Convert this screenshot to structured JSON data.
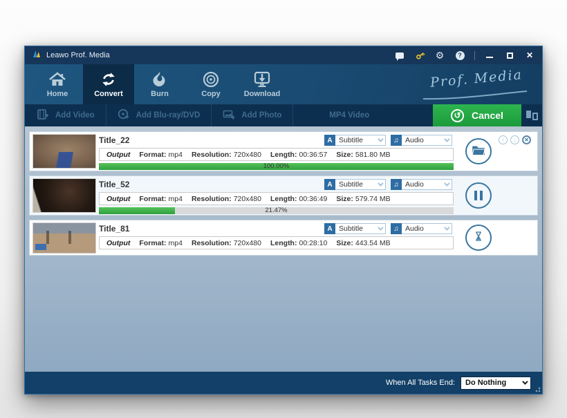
{
  "colors": {
    "titlebar_bg": "#16365a",
    "nav_bg_start": "#1e567f",
    "nav_bg_end": "#143e62",
    "nav_active_bg": "#0b2b47",
    "toolbar_bg": "#0d2f4f",
    "content_bg_start": "#b7c6d3",
    "content_bg_end": "#8fa9c2",
    "bottombar_bg": "#134068",
    "accent_green": "#22a844",
    "steel_blue": "#39759e",
    "progress_green": "#3fb14b",
    "key_gold": "#e6c230",
    "disabled_text": "#3f6b8e",
    "icon_blue": "#2e6da4"
  },
  "titlebar": {
    "app_title": "Leawo Prof. Media",
    "glyphs": {
      "gear": "⚙",
      "help": "?",
      "close": "✕"
    }
  },
  "nav": {
    "brand": "Prof. Media",
    "items": [
      {
        "id": "home",
        "label": "Home",
        "active": false
      },
      {
        "id": "convert",
        "label": "Convert",
        "active": true
      },
      {
        "id": "burn",
        "label": "Burn",
        "active": false
      },
      {
        "id": "copy",
        "label": "Copy",
        "active": false
      },
      {
        "id": "download",
        "label": "Download",
        "active": false
      }
    ]
  },
  "toolbar": {
    "add_video_label": "Add Video",
    "add_bluray_label": "Add Blu-ray/DVD",
    "add_photo_label": "Add Photo",
    "format_label": "MP4 Video",
    "cancel_label": "Cancel",
    "cancel_icon_glyph": "↺"
  },
  "ui_glyphs": {
    "move_up": "↑",
    "move_down": "↓",
    "remove": "✕",
    "subtitle_icon": "A",
    "audio_icon": "♫"
  },
  "tasks": [
    {
      "title": "Title_22",
      "output_label": "Output",
      "format_key": "Format:",
      "format": "mp4",
      "resolution_key": "Resolution:",
      "resolution": "720x480",
      "length_key": "Length:",
      "length": "00:36:57",
      "size_key": "Size:",
      "size": "581.80 MB",
      "subtitle_label": "Subtitle",
      "audio_label": "Audio",
      "progress_text": "100.00%",
      "progress_value": 100,
      "status": "completed",
      "action_icon": "open-folder"
    },
    {
      "title": "Title_52",
      "output_label": "Output",
      "format_key": "Format:",
      "format": "mp4",
      "resolution_key": "Resolution:",
      "resolution": "720x480",
      "length_key": "Length:",
      "length": "00:36:49",
      "size_key": "Size:",
      "size": "579.74 MB",
      "subtitle_label": "Subtitle",
      "audio_label": "Audio",
      "progress_text": "21.47%",
      "progress_value": 21.47,
      "status": "converting",
      "action_icon": "pause"
    },
    {
      "title": "Title_81",
      "output_label": "Output",
      "format_key": "Format:",
      "format": "mp4",
      "resolution_key": "Resolution:",
      "resolution": "720x480",
      "length_key": "Length:",
      "length": "00:28:10",
      "size_key": "Size:",
      "size": "443.54 MB",
      "subtitle_label": "Subtitle",
      "audio_label": "Audio",
      "progress_text": null,
      "progress_value": null,
      "status": "queued",
      "action_icon": "hourglass"
    }
  ],
  "statusbar": {
    "label": "When All Tasks End:",
    "value": "Do Nothing"
  }
}
